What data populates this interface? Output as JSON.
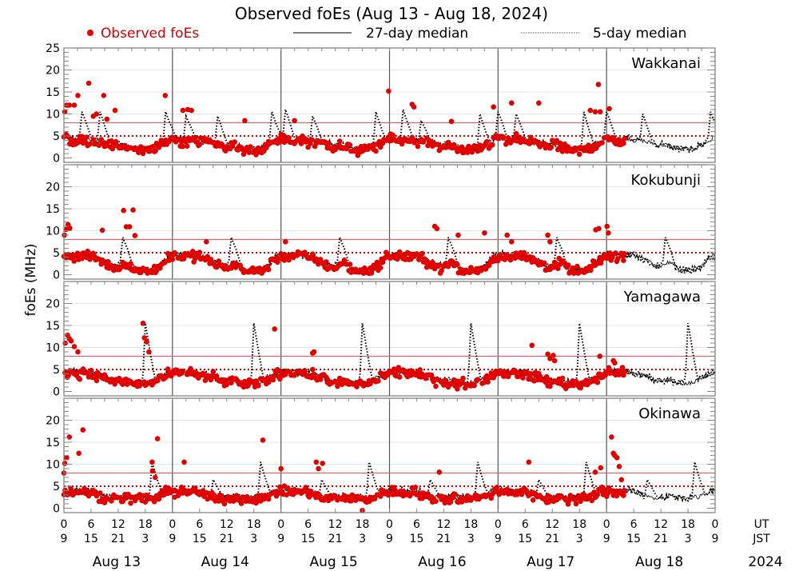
{
  "chart_data": {
    "type": "scatter",
    "title": "Observed foEs (Aug 13 - Aug 18, 2024)",
    "ylabel": "foEs (MHz)",
    "xlabel": "",
    "ylim": [
      -1,
      25
    ],
    "yticks": [
      0,
      5,
      10,
      15,
      20,
      25
    ],
    "yticks_inner": [
      0,
      5,
      10,
      15,
      20
    ],
    "xlim_hours_ut": [
      0,
      144
    ],
    "grid": true,
    "legend": {
      "placement": "top",
      "entries": [
        {
          "label": "Observed foEs",
          "style": "red-dot",
          "color": "#e00000"
        },
        {
          "label": "27-day median",
          "style": "solid-line",
          "color": "#000000"
        },
        {
          "label": "5-day median",
          "style": "dotted-line",
          "color": "#000000"
        }
      ]
    },
    "reference_lines": [
      {
        "value": 8,
        "style": "solid",
        "color": "#d66a6a"
      },
      {
        "value": 5,
        "style": "dotted",
        "color": "#d40000"
      }
    ],
    "x_ticks_ut": [
      "0",
      "6",
      "12",
      "18",
      "0",
      "6",
      "12",
      "18",
      "0",
      "6",
      "12",
      "18",
      "0",
      "6",
      "12",
      "18",
      "0",
      "6",
      "12",
      "18",
      "0",
      "6",
      "12",
      "18",
      "0"
    ],
    "x_ticks_jst": [
      "9",
      "15",
      "21",
      "3",
      "9",
      "15",
      "21",
      "3",
      "9",
      "15",
      "21",
      "3",
      "9",
      "15",
      "21",
      "3",
      "9",
      "15",
      "21",
      "3",
      "9",
      "15",
      "21",
      "3",
      "9"
    ],
    "x_row_labels": [
      "UT",
      "JST"
    ],
    "dates": [
      "Aug 13",
      "Aug 14",
      "Aug 15",
      "Aug 16",
      "Aug 17",
      "Aug 18"
    ],
    "year": "2024",
    "observed_end_hour": 124,
    "panels": [
      {
        "station": "Wakkanai",
        "median27_hourly_ut": [
          5,
          4.5,
          4,
          4,
          4.5,
          4.5,
          4,
          4,
          4,
          3.5,
          3.5,
          3,
          3,
          3,
          2.5,
          2.5,
          2,
          2,
          2,
          2,
          2.5,
          3,
          3.5,
          4
        ],
        "median5_peaks": [
          {
            "hour": 4,
            "value": 10.5
          },
          {
            "hour": 8,
            "value": 10.5
          },
          {
            "hour": 22.5,
            "value": 10.5
          },
          {
            "hour": 27,
            "value": 9.5
          },
          {
            "hour": 34,
            "value": 9.5
          },
          {
            "hour": 46,
            "value": 10.5
          },
          {
            "hour": 49,
            "value": 11
          },
          {
            "hour": 55,
            "value": 9.5
          },
          {
            "hour": 69,
            "value": 10.5
          },
          {
            "hour": 75,
            "value": 11
          },
          {
            "hour": 79,
            "value": 8.5
          },
          {
            "hour": 92,
            "value": 10
          },
          {
            "hour": 96,
            "value": 10.5
          },
          {
            "hour": 100,
            "value": 10
          },
          {
            "hour": 115,
            "value": 10.5
          },
          {
            "hour": 120,
            "value": 10.5
          },
          {
            "hour": 128,
            "value": 10
          },
          {
            "hour": 143,
            "value": 10.5
          }
        ],
        "observed_outliers": [
          {
            "hour": 0.2,
            "value": 10.5
          },
          {
            "hour": 0.6,
            "value": 12
          },
          {
            "hour": 1.2,
            "value": 12
          },
          {
            "hour": 2.3,
            "value": 12
          },
          {
            "hour": 3.1,
            "value": 14.2
          },
          {
            "hour": 5.5,
            "value": 17
          },
          {
            "hour": 6.5,
            "value": 9.5
          },
          {
            "hour": 7.2,
            "value": 10
          },
          {
            "hour": 8.8,
            "value": 14.2
          },
          {
            "hour": 9.5,
            "value": 8.8
          },
          {
            "hour": 11.3,
            "value": 10.8
          },
          {
            "hour": 22.4,
            "value": 14.2
          },
          {
            "hour": 26.3,
            "value": 10.8
          },
          {
            "hour": 27.4,
            "value": 11
          },
          {
            "hour": 28.2,
            "value": 10.8
          },
          {
            "hour": 40,
            "value": 8.5
          },
          {
            "hour": 51,
            "value": 8.5
          },
          {
            "hour": 71.8,
            "value": 15.2
          },
          {
            "hour": 77,
            "value": 12.2
          },
          {
            "hour": 77.4,
            "value": 11.6
          },
          {
            "hour": 85.7,
            "value": 8.3
          },
          {
            "hour": 95,
            "value": 11.6
          },
          {
            "hour": 99,
            "value": 12.5
          },
          {
            "hour": 105,
            "value": 12.5
          },
          {
            "hour": 116.4,
            "value": 10.8
          },
          {
            "hour": 117.5,
            "value": 10.5
          },
          {
            "hour": 118.2,
            "value": 16.7
          },
          {
            "hour": 118.6,
            "value": 10.5
          },
          {
            "hour": 120.6,
            "value": 11.2
          }
        ]
      },
      {
        "station": "Kokubunji",
        "median27_hourly_ut": [
          4.5,
          4.5,
          4.5,
          4.5,
          4.5,
          4.5,
          4.5,
          4,
          3.5,
          3,
          2.5,
          2,
          2,
          2.5,
          3,
          2,
          1,
          1,
          1,
          1,
          1.5,
          2,
          3,
          4
        ],
        "median5_peaks": [
          {
            "hour": 13,
            "value": 8.5
          },
          {
            "hour": 37,
            "value": 8.5
          },
          {
            "hour": 61,
            "value": 8.5
          },
          {
            "hour": 85,
            "value": 8.5
          },
          {
            "hour": 109,
            "value": 8.5
          },
          {
            "hour": 133,
            "value": 8.5
          }
        ],
        "observed_outliers": [
          {
            "hour": 0.1,
            "value": 9
          },
          {
            "hour": 0.5,
            "value": 10.3
          },
          {
            "hour": 0.9,
            "value": 11.4
          },
          {
            "hour": 1.3,
            "value": 10.6
          },
          {
            "hour": 8.5,
            "value": 10.1
          },
          {
            "hour": 13.2,
            "value": 14.6
          },
          {
            "hour": 13.8,
            "value": 10.9
          },
          {
            "hour": 14.5,
            "value": 10.9
          },
          {
            "hour": 15.3,
            "value": 14.7
          },
          {
            "hour": 15.7,
            "value": 8.9
          },
          {
            "hour": 31.5,
            "value": 7.5
          },
          {
            "hour": 49,
            "value": 7.5
          },
          {
            "hour": 82,
            "value": 11
          },
          {
            "hour": 82.5,
            "value": 10.5
          },
          {
            "hour": 87.2,
            "value": 9
          },
          {
            "hour": 93,
            "value": 9.5
          },
          {
            "hour": 98,
            "value": 9
          },
          {
            "hour": 99,
            "value": 7.5
          },
          {
            "hour": 107,
            "value": 9
          },
          {
            "hour": 107.5,
            "value": 7.5
          },
          {
            "hour": 117.6,
            "value": 10.2
          },
          {
            "hour": 118.3,
            "value": 10.5
          },
          {
            "hour": 120.1,
            "value": 11
          },
          {
            "hour": 120.4,
            "value": 9.5
          }
        ]
      },
      {
        "station": "Yamagawa",
        "median27_hourly_ut": [
          4.5,
          4.5,
          4.5,
          4.5,
          4.5,
          4.5,
          4,
          4,
          3.5,
          3.5,
          3,
          2.5,
          2.5,
          2.5,
          2.5,
          2,
          2,
          2,
          2,
          2,
          2.5,
          3,
          3.5,
          4
        ],
        "median5_peaks": [
          {
            "hour": 18,
            "value": 15.5
          },
          {
            "hour": 42,
            "value": 15.5
          },
          {
            "hour": 66,
            "value": 15.5
          },
          {
            "hour": 90,
            "value": 15.5
          },
          {
            "hour": 114,
            "value": 15.5
          },
          {
            "hour": 138,
            "value": 15.5
          }
        ],
        "observed_outliers": [
          {
            "hour": 0.3,
            "value": 11
          },
          {
            "hour": 0.8,
            "value": 12.8
          },
          {
            "hour": 1.2,
            "value": 12
          },
          {
            "hour": 1.6,
            "value": 11.5
          },
          {
            "hour": 2.3,
            "value": 10.2
          },
          {
            "hour": 3.1,
            "value": 9
          },
          {
            "hour": 17.5,
            "value": 15.5
          },
          {
            "hour": 17.8,
            "value": 12.2
          },
          {
            "hour": 18.3,
            "value": 11.3
          },
          {
            "hour": 18.8,
            "value": 9
          },
          {
            "hour": 46.6,
            "value": 14.2
          },
          {
            "hour": 55,
            "value": 8.7
          },
          {
            "hour": 55.3,
            "value": 9
          },
          {
            "hour": 103.5,
            "value": 10.5
          },
          {
            "hour": 107,
            "value": 8.5
          },
          {
            "hour": 107.5,
            "value": 7.5
          },
          {
            "hour": 108.2,
            "value": 8.2
          },
          {
            "hour": 108.5,
            "value": 7
          },
          {
            "hour": 118.5,
            "value": 8
          },
          {
            "hour": 121.5,
            "value": 7
          },
          {
            "hour": 121.8,
            "value": 6.5
          }
        ]
      },
      {
        "station": "Okinawa",
        "median27_hourly_ut": [
          4,
          4,
          4,
          4,
          4,
          4,
          4,
          3.5,
          3,
          2.5,
          2.5,
          2.5,
          2.5,
          2.5,
          3,
          2.5,
          2.5,
          2.5,
          2.5,
          2.5,
          2.5,
          3,
          3.5,
          4
        ],
        "median5_peaks": [
          {
            "hour": 19.5,
            "value": 10.5
          },
          {
            "hour": 33,
            "value": 6.5
          },
          {
            "hour": 43.5,
            "value": 10.5
          },
          {
            "hour": 57,
            "value": 6.5
          },
          {
            "hour": 67.5,
            "value": 10.5
          },
          {
            "hour": 81,
            "value": 6.5
          },
          {
            "hour": 91.5,
            "value": 10.5
          },
          {
            "hour": 105,
            "value": 6.5
          },
          {
            "hour": 115.5,
            "value": 10.5
          },
          {
            "hour": 129,
            "value": 6.5
          },
          {
            "hour": 139.5,
            "value": 10.5
          }
        ],
        "observed_outliers": [
          {
            "hour": 0,
            "value": 8
          },
          {
            "hour": 0.2,
            "value": 10.2
          },
          {
            "hour": 0.6,
            "value": 11.5
          },
          {
            "hour": 1.2,
            "value": 16.2
          },
          {
            "hour": 3.3,
            "value": 12.5
          },
          {
            "hour": 4.2,
            "value": 17.8
          },
          {
            "hour": 19.5,
            "value": 10.5
          },
          {
            "hour": 19.6,
            "value": 8.5
          },
          {
            "hour": 20.2,
            "value": 7
          },
          {
            "hour": 20.7,
            "value": 15.8
          },
          {
            "hour": 26.6,
            "value": 10.5
          },
          {
            "hour": 44,
            "value": 15.5
          },
          {
            "hour": 48,
            "value": 9
          },
          {
            "hour": 55.8,
            "value": 10.5
          },
          {
            "hour": 56.3,
            "value": 9
          },
          {
            "hour": 57.2,
            "value": 10.2
          },
          {
            "hour": 66,
            "value": -0.5
          },
          {
            "hour": 83,
            "value": 8.2
          },
          {
            "hour": 102.8,
            "value": 10.5
          },
          {
            "hour": 117.5,
            "value": 8.2
          },
          {
            "hour": 118.7,
            "value": 9.2
          },
          {
            "hour": 121.1,
            "value": 16.2
          },
          {
            "hour": 121.5,
            "value": 12.5
          },
          {
            "hour": 121.8,
            "value": 12
          },
          {
            "hour": 122.3,
            "value": 11.5
          },
          {
            "hour": 122.8,
            "value": 9.5
          },
          {
            "hour": 123.3,
            "value": 6.5
          }
        ]
      }
    ]
  }
}
